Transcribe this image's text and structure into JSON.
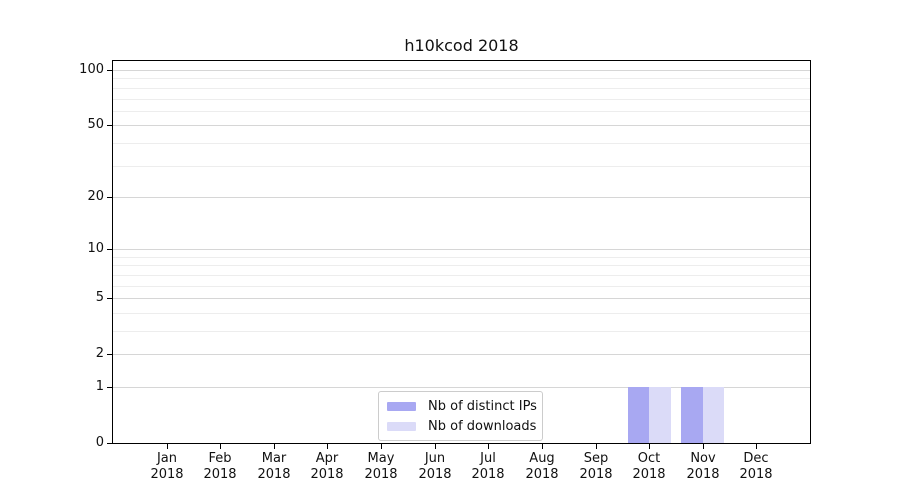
{
  "chart_data": {
    "type": "bar",
    "title": "h10kcod 2018",
    "categories": [
      "Jan",
      "Feb",
      "Mar",
      "Apr",
      "May",
      "Jun",
      "Jul",
      "Aug",
      "Sep",
      "Oct",
      "Nov",
      "Dec"
    ],
    "category_year": "2018",
    "series": [
      {
        "name": "Nb of distinct IPs",
        "color": "#a8a8f2",
        "values": [
          0,
          0,
          0,
          0,
          0,
          0,
          0,
          0,
          0,
          1,
          1,
          0
        ]
      },
      {
        "name": "Nb of downloads",
        "color": "#dbdbf8",
        "values": [
          0,
          0,
          0,
          0,
          0,
          0,
          0,
          0,
          0,
          1,
          1,
          0
        ]
      }
    ],
    "xlabel": "",
    "ylabel": "",
    "yaxis": {
      "scale": "log1p",
      "major_ticks": [
        0,
        1,
        2,
        5,
        10,
        20,
        50,
        100
      ],
      "minor_ticks": [
        3,
        4,
        6,
        7,
        8,
        9,
        30,
        40,
        60,
        70,
        80,
        90
      ],
      "ymax": 112
    },
    "legend": {
      "position": "lower center"
    },
    "grid": "horizontal-only",
    "colors": {
      "major_grid": "#d6d6d6",
      "minor_grid": "#ededed",
      "spine": "#000000",
      "text": "#111111",
      "background": "#ffffff",
      "legend_border": "#cccccc"
    }
  }
}
